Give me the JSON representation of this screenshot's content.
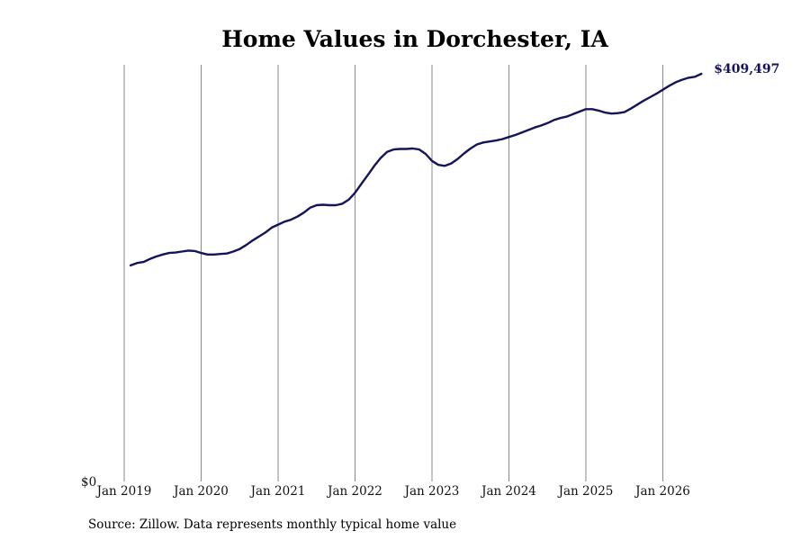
{
  "chart_data": {
    "type": "line",
    "title": "Home Values in Dorchester, IA",
    "source": "Source: Zillow. Data represents monthly typical home value",
    "end_label": "$409,497",
    "y_tick_label": "$0",
    "x_ticks": [
      "Jan 2019",
      "Jan 2020",
      "Jan 2021",
      "Jan 2022",
      "Jan 2023",
      "Jan 2024",
      "Jan 2025",
      "Jan 2026"
    ],
    "xlim": [
      "2019-01",
      "2026-07"
    ],
    "ylim": [
      0,
      420000
    ],
    "grid": "vertical",
    "line_color": "#14145a",
    "series": [
      {
        "x": [
          "2019-02",
          "2019-03",
          "2019-04",
          "2019-05",
          "2019-06",
          "2019-07",
          "2019-08",
          "2019-09",
          "2019-10",
          "2019-11",
          "2019-12",
          "2020-01",
          "2020-02",
          "2020-03",
          "2020-04",
          "2020-05",
          "2020-06",
          "2020-07",
          "2020-08",
          "2020-09",
          "2020-10",
          "2020-11",
          "2020-12",
          "2021-01",
          "2021-02",
          "2021-03",
          "2021-04",
          "2021-05",
          "2021-06",
          "2021-07",
          "2021-08",
          "2021-09",
          "2021-10",
          "2021-11",
          "2021-12",
          "2022-01",
          "2022-02",
          "2022-03",
          "2022-04",
          "2022-05",
          "2022-06",
          "2022-07",
          "2022-08",
          "2022-09",
          "2022-10",
          "2022-11",
          "2022-12",
          "2023-01",
          "2023-02",
          "2023-03",
          "2023-04",
          "2023-05",
          "2023-06",
          "2023-07",
          "2023-08",
          "2023-09",
          "2023-10",
          "2023-11",
          "2023-12",
          "2024-01",
          "2024-02",
          "2024-03",
          "2024-04",
          "2024-05",
          "2024-06",
          "2024-07",
          "2024-08",
          "2024-09",
          "2024-10",
          "2024-11",
          "2024-12",
          "2025-01",
          "2025-02",
          "2025-03",
          "2025-04",
          "2025-05",
          "2025-06",
          "2025-07",
          "2025-08",
          "2025-09",
          "2025-10",
          "2025-11",
          "2025-12",
          "2026-01",
          "2026-02",
          "2026-03",
          "2026-04",
          "2026-05",
          "2026-06",
          "2026-07"
        ],
        "values": [
          217000,
          219500,
          220500,
          223500,
          226000,
          228000,
          229500,
          230000,
          231000,
          232000,
          231500,
          229500,
          228000,
          228000,
          228500,
          229000,
          231000,
          233500,
          237500,
          242000,
          246000,
          250000,
          255000,
          258000,
          261000,
          263000,
          266000,
          270000,
          275000,
          277500,
          278000,
          277500,
          277500,
          279000,
          283000,
          290000,
          299000,
          308000,
          317000,
          325000,
          331000,
          333500,
          334000,
          334000,
          334500,
          333500,
          329000,
          322000,
          318000,
          317000,
          319500,
          324000,
          329500,
          334500,
          338500,
          340500,
          341500,
          342500,
          344000,
          346000,
          348000,
          350500,
          353000,
          355500,
          357500,
          360000,
          363000,
          365000,
          366500,
          369000,
          371500,
          374000,
          374000,
          372500,
          370500,
          369500,
          370000,
          371000,
          374500,
          378500,
          382500,
          386000,
          389500,
          393500,
          397500,
          401000,
          403500,
          405500,
          406500,
          409497
        ]
      }
    ]
  }
}
